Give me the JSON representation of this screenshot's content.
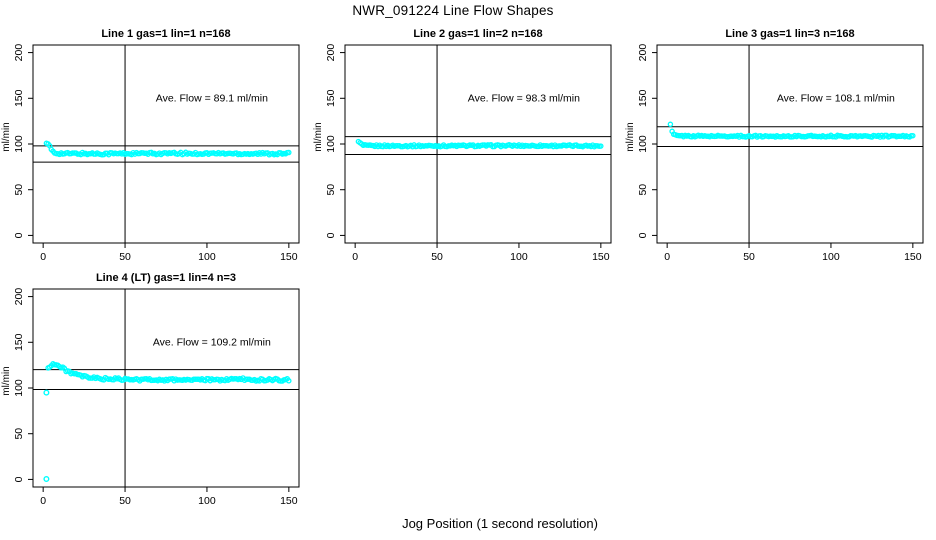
{
  "figure": {
    "title": "NWR_091224  Line Flow Shapes",
    "xlabel": "Jog Position (1 second resolution)",
    "background": "#ffffff",
    "point_color": "#00ffff",
    "axis_color": "#000000"
  },
  "chart_data": [
    {
      "type": "scatter",
      "title": "Line 1 gas=1 lin=1 n=168",
      "annotation": "Ave. Flow =  89.1  ml/min",
      "ave_flow": 89.1,
      "ylabel": "ml/min",
      "xlim": [
        0,
        150
      ],
      "ylim": [
        0,
        200
      ],
      "xticks": [
        0,
        50,
        100,
        150
      ],
      "yticks": [
        0,
        50,
        100,
        150,
        200
      ],
      "vline_x": 50,
      "hlines": [
        98.0,
        80.2
      ],
      "noise": 1.3,
      "keypoints": [
        [
          2,
          100
        ],
        [
          3,
          99.5
        ],
        [
          4,
          97
        ],
        [
          5,
          94
        ],
        [
          6,
          92
        ],
        [
          7,
          90.5
        ],
        [
          9,
          90
        ],
        [
          12,
          89.5
        ],
        [
          50,
          89.5
        ],
        [
          100,
          89.7
        ],
        [
          150,
          89.4
        ]
      ],
      "outliers": []
    },
    {
      "type": "scatter",
      "title": "Line 2 gas=1 lin=2 n=168",
      "annotation": "Ave. Flow =  98.3  ml/min",
      "ave_flow": 98.3,
      "ylabel": "ml/min",
      "xlim": [
        0,
        150
      ],
      "ylim": [
        0,
        200
      ],
      "xticks": [
        0,
        50,
        100,
        150
      ],
      "yticks": [
        0,
        50,
        100,
        150,
        200
      ],
      "vline_x": 50,
      "hlines": [
        108.1,
        88.5
      ],
      "noise": 1.0,
      "keypoints": [
        [
          2,
          102
        ],
        [
          3,
          101
        ],
        [
          4,
          99.5
        ],
        [
          5,
          98.5
        ],
        [
          7,
          98
        ],
        [
          50,
          98
        ],
        [
          100,
          98.2
        ],
        [
          150,
          98
        ]
      ],
      "outliers": []
    },
    {
      "type": "scatter",
      "title": "Line 3 gas=1 lin=3 n=168",
      "annotation": "Ave. Flow =  108.1  ml/min",
      "ave_flow": 108.1,
      "ylabel": "ml/min",
      "xlim": [
        0,
        150
      ],
      "ylim": [
        0,
        200
      ],
      "xticks": [
        0,
        50,
        100,
        150
      ],
      "yticks": [
        0,
        50,
        100,
        150,
        200
      ],
      "vline_x": 50,
      "hlines": [
        118.9,
        97.3
      ],
      "noise": 0.9,
      "keypoints": [
        [
          2,
          121
        ],
        [
          3,
          113.5
        ],
        [
          4,
          110.5
        ],
        [
          5,
          109.5
        ],
        [
          7,
          108.8
        ],
        [
          50,
          108.5
        ],
        [
          100,
          108.6
        ],
        [
          150,
          108.5
        ]
      ],
      "outliers": []
    },
    {
      "type": "scatter",
      "title": "Line 4 (LT) gas=1 lin=4 n=3",
      "annotation": "Ave. Flow =  109.2  ml/min",
      "ave_flow": 109.2,
      "ylabel": "ml/min",
      "xlim": [
        0,
        150
      ],
      "ylim": [
        0,
        200
      ],
      "xticks": [
        0,
        50,
        100,
        150
      ],
      "yticks": [
        0,
        50,
        100,
        150,
        200
      ],
      "vline_x": 50,
      "hlines": [
        120.1,
        98.3
      ],
      "noise": 1.4,
      "keypoints": [
        [
          3,
          122
        ],
        [
          4,
          124
        ],
        [
          5,
          125.5
        ],
        [
          6,
          126
        ],
        [
          7,
          126
        ],
        [
          8,
          125.5
        ],
        [
          10,
          123.5
        ],
        [
          12,
          121.5
        ],
        [
          14,
          119.5
        ],
        [
          16,
          117.5
        ],
        [
          18,
          116
        ],
        [
          20,
          114.5
        ],
        [
          23,
          113
        ],
        [
          26,
          112
        ],
        [
          30,
          111
        ],
        [
          35,
          110.3
        ],
        [
          40,
          110
        ],
        [
          45,
          109.7
        ],
        [
          50,
          109.4
        ],
        [
          55,
          109
        ],
        [
          60,
          109
        ],
        [
          65,
          109.4
        ],
        [
          70,
          109.2
        ],
        [
          75,
          108.8
        ],
        [
          80,
          109
        ],
        [
          85,
          109.3
        ],
        [
          90,
          109
        ],
        [
          95,
          108.8
        ],
        [
          100,
          109
        ],
        [
          105,
          108.8
        ],
        [
          110,
          109
        ],
        [
          115,
          109.2
        ],
        [
          120,
          110.3
        ],
        [
          125,
          109
        ],
        [
          130,
          108.8
        ],
        [
          135,
          109
        ],
        [
          140,
          109.3
        ],
        [
          145,
          108.8
        ],
        [
          150,
          109
        ]
      ],
      "outliers": [
        [
          2,
          0.5
        ],
        [
          2,
          95
        ]
      ]
    }
  ]
}
